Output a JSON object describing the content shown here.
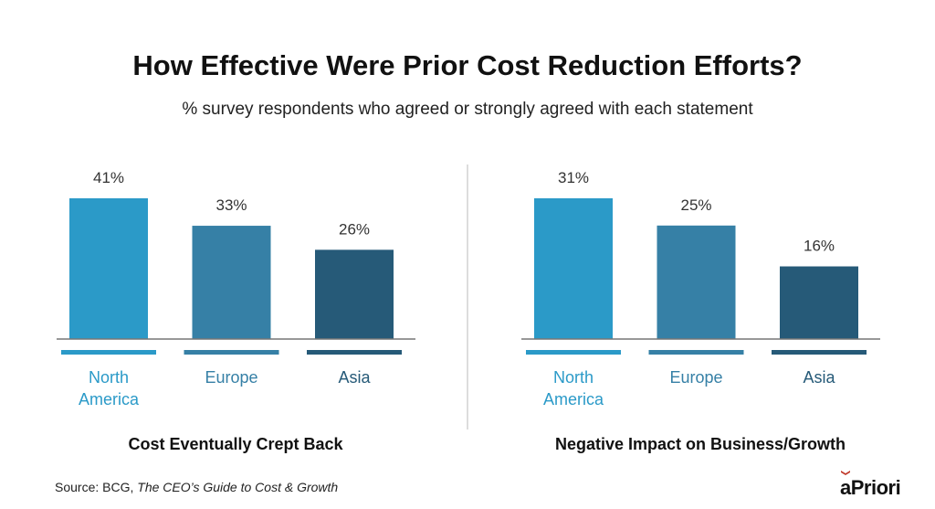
{
  "title": "How Effective Were Prior Cost Reduction Efforts?",
  "subtitle": "% survey respondents who agreed or strongly agreed with each statement",
  "source": {
    "prefix": "Source:  BCG, ",
    "work": "The CEO’s Guide to Cost & Growth"
  },
  "logo": "aPriori",
  "colors": {
    "north_america": "#2b9ac8",
    "europe": "#3680a6",
    "asia": "#265a78",
    "logo_accent": "#c0392b"
  },
  "chart_data": [
    {
      "type": "bar",
      "title": "Cost Eventually Crept Back",
      "categories": [
        "North America",
        "Europe",
        "Asia"
      ],
      "category_lines": [
        [
          "North",
          "America"
        ],
        [
          "Europe"
        ],
        [
          "Asia"
        ]
      ],
      "values": [
        41,
        33,
        26
      ],
      "labels": [
        "41%",
        "33%",
        "26%"
      ],
      "unit": "%"
    },
    {
      "type": "bar",
      "title": "Negative Impact on Business/Growth",
      "categories": [
        "North America",
        "Europe",
        "Asia"
      ],
      "category_lines": [
        [
          "North",
          "America"
        ],
        [
          "Europe"
        ],
        [
          "Asia"
        ]
      ],
      "values": [
        31,
        25,
        16
      ],
      "labels": [
        "31%",
        "25%",
        "16%"
      ],
      "unit": "%"
    }
  ]
}
